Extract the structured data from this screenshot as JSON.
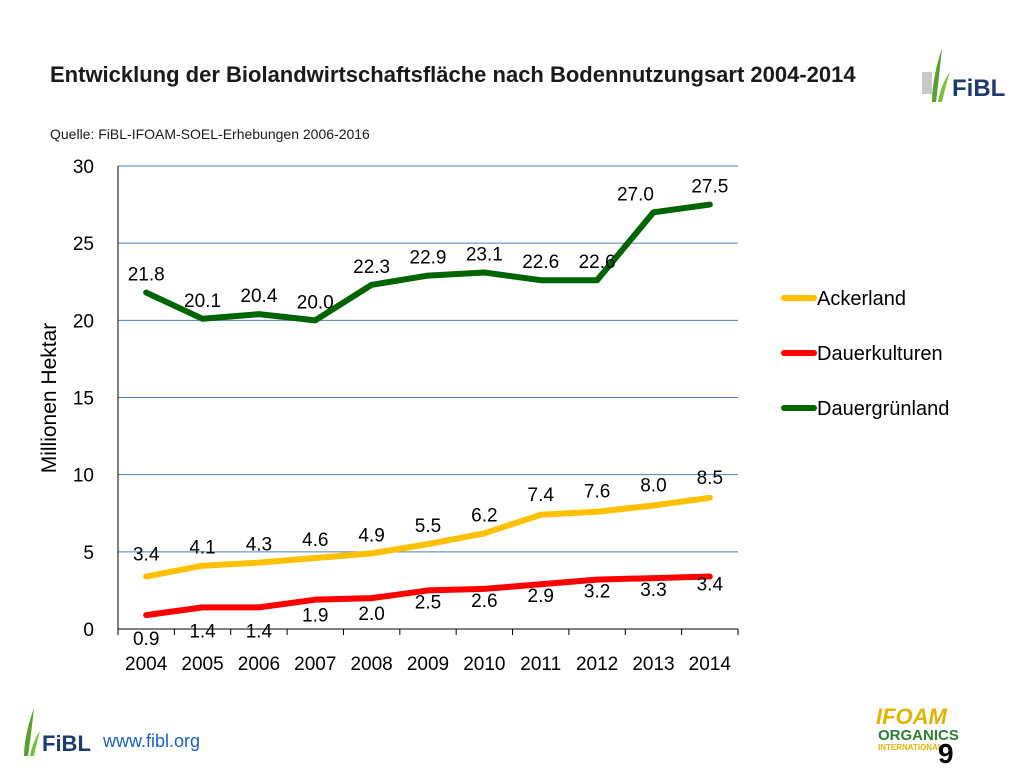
{
  "header": {
    "title": "Entwicklung der Biolandwirtschaftsfläche nach Bodennutzungsart 2004-2014",
    "source": "Quelle: FiBL-IFOAM-SOEL-Erhebungen 2006-2016"
  },
  "logos": {
    "fibl_text": "FiBL",
    "ifoam_line1": "IFOAM",
    "ifoam_line2": "ORGANICS",
    "ifoam_line3": "INTERNATIONAL"
  },
  "footer": {
    "url": "www.fibl.org",
    "page_number": "9"
  },
  "colors": {
    "ackerland": "#ffc000",
    "dauerkulturen": "#ff0000",
    "dauergruenland": "#006400",
    "grid": "#4f81bd",
    "fibl_green": "#5aa02c",
    "fibl_blue": "#1f3a6e",
    "url_blue": "#1f5fbf",
    "ifoam_yellow": "#e0b400",
    "ifoam_green": "#2e7d32"
  },
  "chart_data": {
    "type": "line",
    "title": "Entwicklung der Biolandwirtschaftsfläche nach Bodennutzungsart 2004-2014",
    "xlabel": "",
    "ylabel": "Millionen Hektar",
    "ylim": [
      0,
      30
    ],
    "yticks": [
      0,
      5,
      10,
      15,
      20,
      25,
      30
    ],
    "grid": true,
    "legend_position": "right",
    "categories": [
      "2004",
      "2005",
      "2006",
      "2007",
      "2008",
      "2009",
      "2010",
      "2011",
      "2012",
      "2013",
      "2014"
    ],
    "series": [
      {
        "name": "Ackerland",
        "color": "#ffc000",
        "values": [
          3.4,
          4.1,
          4.3,
          4.6,
          4.9,
          5.5,
          6.2,
          7.4,
          7.6,
          8.0,
          8.5
        ],
        "labels": [
          "3.4",
          "4.1",
          "4.3",
          "4.6",
          "4.9",
          "5.5",
          "6.2",
          "7.4",
          "7.6",
          "8.0",
          "8.5"
        ]
      },
      {
        "name": "Dauerkulturen",
        "color": "#ff0000",
        "values": [
          0.9,
          1.4,
          1.4,
          1.9,
          2.0,
          2.5,
          2.6,
          2.9,
          3.2,
          3.3,
          3.4
        ],
        "labels": [
          "0.9",
          "1.4",
          "1.4",
          "1.9",
          "2.0",
          "2.5",
          "2.6",
          "2.9",
          "3.2",
          "3.3",
          "3.4"
        ]
      },
      {
        "name": "Dauergrünland",
        "color": "#006400",
        "values": [
          21.8,
          20.1,
          20.4,
          20.0,
          22.3,
          22.9,
          23.1,
          22.6,
          22.6,
          27.0,
          27.5
        ],
        "labels": [
          "21.8",
          "20.1",
          "20.4",
          "20.0",
          "22.3",
          "22.9",
          "23.1",
          "22.6",
          "22.6",
          "27.0",
          "27.5"
        ]
      }
    ]
  }
}
